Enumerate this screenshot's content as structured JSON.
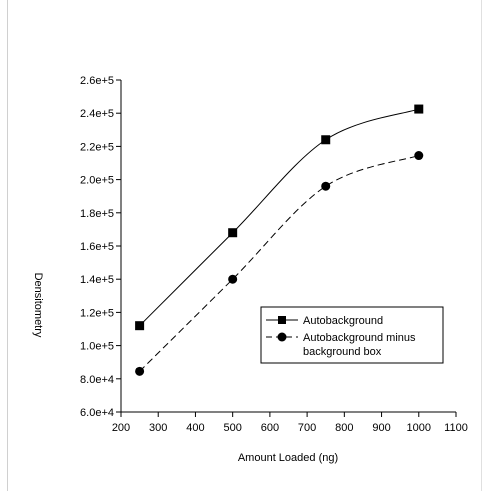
{
  "chart_data": {
    "type": "line",
    "title": "",
    "xlabel": "Amount Loaded (ng)",
    "ylabel": "Densitometry",
    "xlim": [
      200,
      1100
    ],
    "ylim": [
      60000,
      260000
    ],
    "x_ticks": [
      200,
      300,
      400,
      500,
      600,
      700,
      800,
      900,
      1000,
      1100
    ],
    "x_tick_labels": [
      "200",
      "300",
      "400",
      "500",
      "600",
      "700",
      "800",
      "900",
      "1000",
      "1100"
    ],
    "y_ticks": [
      60000,
      80000,
      100000,
      120000,
      140000,
      160000,
      180000,
      200000,
      220000,
      240000,
      260000
    ],
    "y_tick_labels": [
      "6.0e+4",
      "8.0e+4",
      "1.0e+5",
      "1.2e+5",
      "1.4e+5",
      "1.6e+5",
      "1.8e+5",
      "2.0e+5",
      "2.2e+5",
      "2.4e+5",
      "2.6e+5"
    ],
    "grid": false,
    "legend_position": "lower-right",
    "series": [
      {
        "name": "Autobackground",
        "marker": "square",
        "line_style": "solid",
        "x": [
          250,
          500,
          750,
          1000
        ],
        "y": [
          112000,
          168000,
          224000,
          242500
        ]
      },
      {
        "name": "Autobackground minus background box",
        "marker": "circle",
        "line_style": "dashed",
        "x": [
          250,
          500,
          750,
          1000
        ],
        "y": [
          84500,
          140000,
          196000,
          214500
        ]
      }
    ],
    "legend": {
      "entries": [
        {
          "lines": [
            "Autobackground"
          ]
        },
        {
          "lines": [
            "Autobackground minus",
            "background box"
          ]
        }
      ]
    },
    "colors": {
      "line": "#000000",
      "background": "#ffffff"
    }
  }
}
